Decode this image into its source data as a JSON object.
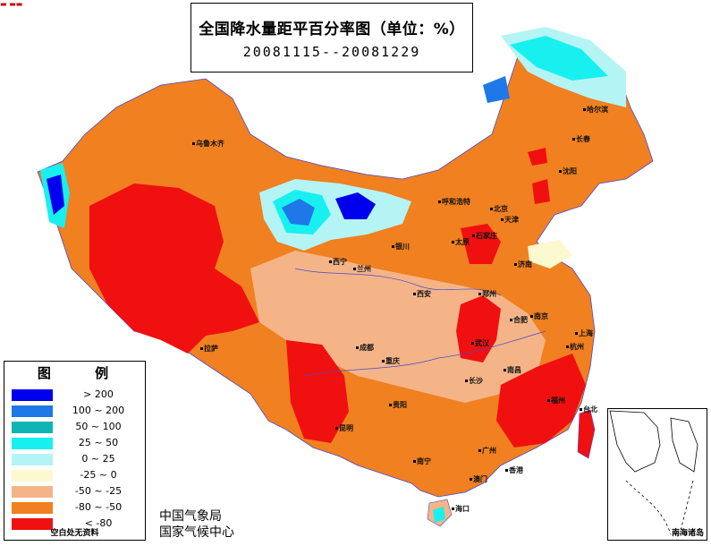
{
  "title": {
    "main": "全国降水量距平百分率图（单位：%）",
    "dates": "20081115--20081229"
  },
  "legend": {
    "title": "图 例",
    "items": [
      {
        "label": "> 200",
        "color": "#0000ee"
      },
      {
        "label": "100 ~ 200",
        "color": "#1e78e8"
      },
      {
        "label": "50 ~ 100",
        "color": "#10b4b4"
      },
      {
        "label": "25 ~ 50",
        "color": "#18f0f0"
      },
      {
        "label": "0 ~ 25",
        "color": "#b4f4f4"
      },
      {
        "label": "-25 ~ 0",
        "color": "#fcf8d0"
      },
      {
        "label": "-50 ~ -25",
        "color": "#f4b487"
      },
      {
        "label": "-80 ~ -50",
        "color": "#f08020"
      },
      {
        "label": "< -80",
        "color": "#f01010"
      }
    ],
    "note": "空白处无资料"
  },
  "agency": {
    "line1": "中国气象局",
    "line2": "国家气候中心"
  },
  "inset": {
    "label": "南海诸岛"
  },
  "cities": [
    {
      "name": "乌鲁木齐",
      "id": "urumqi"
    },
    {
      "name": "哈尔滨",
      "id": "harbin"
    },
    {
      "name": "长春",
      "id": "changchun"
    },
    {
      "name": "沈阳",
      "id": "shenyang"
    },
    {
      "name": "呼和浩特",
      "id": "hohhot"
    },
    {
      "name": "北京",
      "id": "beijing"
    },
    {
      "name": "天津",
      "id": "tianjin"
    },
    {
      "name": "石家庄",
      "id": "shijiazhuang"
    },
    {
      "name": "太原",
      "id": "taiyuan"
    },
    {
      "name": "银川",
      "id": "yinchuan"
    },
    {
      "name": "兰州",
      "id": "lanzhou"
    },
    {
      "name": "西宁",
      "id": "xining"
    },
    {
      "name": "济南",
      "id": "jinan"
    },
    {
      "name": "郑州",
      "id": "zhengzhou"
    },
    {
      "name": "西安",
      "id": "xian"
    },
    {
      "name": "合肥",
      "id": "hefei"
    },
    {
      "name": "南京",
      "id": "nanjing"
    },
    {
      "name": "上海",
      "id": "shanghai"
    },
    {
      "name": "武汉",
      "id": "wuhan"
    },
    {
      "name": "杭州",
      "id": "hangzhou"
    },
    {
      "name": "成都",
      "id": "chengdu"
    },
    {
      "name": "重庆",
      "id": "chongqing"
    },
    {
      "name": "拉萨",
      "id": "lhasa"
    },
    {
      "name": "长沙",
      "id": "changsha"
    },
    {
      "name": "南昌",
      "id": "nanchang"
    },
    {
      "name": "福州",
      "id": "fuzhou"
    },
    {
      "name": "贵阳",
      "id": "guiyang"
    },
    {
      "name": "昆明",
      "id": "kunming"
    },
    {
      "name": "南宁",
      "id": "nanning"
    },
    {
      "name": "广州",
      "id": "guangzhou"
    },
    {
      "name": "香港",
      "id": "hongkong"
    },
    {
      "name": "澳门",
      "id": "macau"
    },
    {
      "name": "台北",
      "id": "taipei"
    },
    {
      "name": "海口",
      "id": "haikou"
    }
  ]
}
